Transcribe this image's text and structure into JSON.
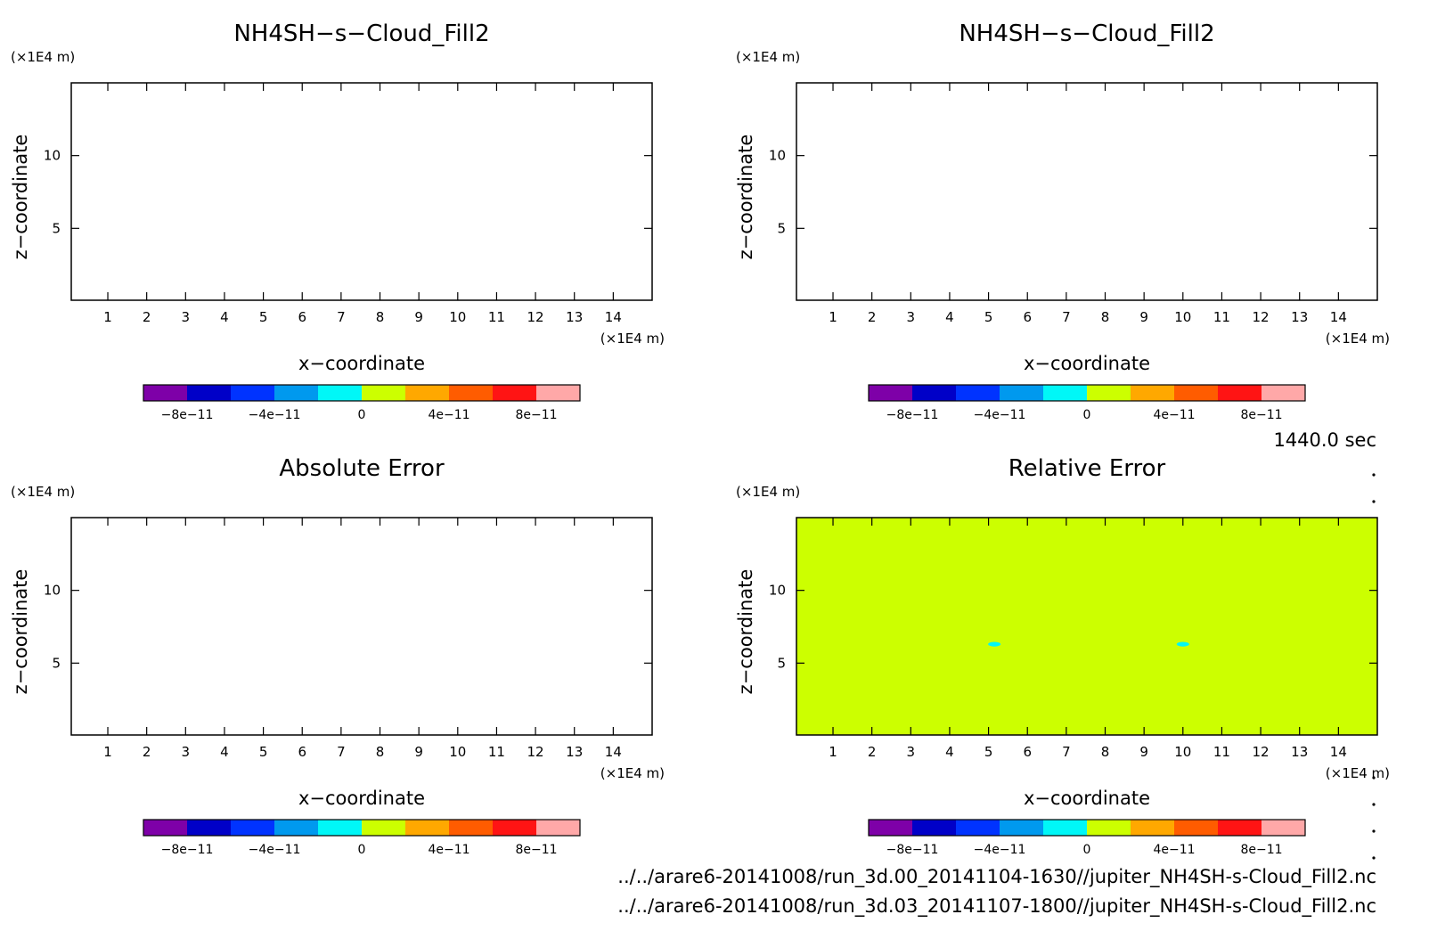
{
  "chart_data": [
    {
      "type": "heatmap",
      "title": "NH4SH-s-Cloud_Fill2",
      "xlabel": "x-coordinate",
      "ylabel": "z-coordinate",
      "x_unit": "(×1E4 m)",
      "y_unit": "(×1E4 m)",
      "xlim": [
        0.06,
        15.0
      ],
      "ylim": [
        0.06,
        15.0
      ],
      "x_ticks": [
        1,
        2,
        3,
        4,
        5,
        6,
        7,
        8,
        9,
        10,
        11,
        12,
        13,
        14
      ],
      "y_ticks": [
        5,
        10
      ],
      "grid": false,
      "fill": "none",
      "colorbar": {
        "levels": [
          -1e-10,
          -8e-11,
          -6e-11,
          -4e-11,
          -2e-11,
          0,
          2e-11,
          4e-11,
          6e-11,
          8e-11,
          1e-10
        ],
        "tick_labels": [
          "-8e-11",
          "-4e-11",
          "0",
          "4e-11",
          "8e-11"
        ],
        "colors": [
          "#7e00a8",
          "#0000c8",
          "#0033ff",
          "#0099ee",
          "#00f7f7",
          "#ccff00",
          "#ffa800",
          "#ff5c00",
          "#ff1414",
          "#ffa8a8"
        ]
      }
    },
    {
      "type": "heatmap",
      "title": "NH4SH-s-Cloud_Fill2",
      "xlabel": "x-coordinate",
      "ylabel": "z-coordinate",
      "x_unit": "(×1E4 m)",
      "y_unit": "(×1E4 m)",
      "xlim": [
        0.06,
        15.0
      ],
      "ylim": [
        0.06,
        15.0
      ],
      "x_ticks": [
        1,
        2,
        3,
        4,
        5,
        6,
        7,
        8,
        9,
        10,
        11,
        12,
        13,
        14
      ],
      "y_ticks": [
        5,
        10
      ],
      "grid": false,
      "fill": "none",
      "colorbar": {
        "levels": [
          -1e-10,
          -8e-11,
          -6e-11,
          -4e-11,
          -2e-11,
          0,
          2e-11,
          4e-11,
          6e-11,
          8e-11,
          1e-10
        ],
        "tick_labels": [
          "-8e-11",
          "-4e-11",
          "0",
          "4e-11",
          "8e-11"
        ],
        "colors": [
          "#7e00a8",
          "#0000c8",
          "#0033ff",
          "#0099ee",
          "#00f7f7",
          "#ccff00",
          "#ffa800",
          "#ff5c00",
          "#ff1414",
          "#ffa8a8"
        ]
      }
    },
    {
      "type": "heatmap",
      "title": "Absolute Error",
      "xlabel": "x-coordinate",
      "ylabel": "z-coordinate",
      "x_unit": "(×1E4 m)",
      "y_unit": "(×1E4 m)",
      "xlim": [
        0.06,
        15.0
      ],
      "ylim": [
        0.06,
        15.0
      ],
      "x_ticks": [
        1,
        2,
        3,
        4,
        5,
        6,
        7,
        8,
        9,
        10,
        11,
        12,
        13,
        14
      ],
      "y_ticks": [
        5,
        10
      ],
      "grid": false,
      "fill": "none",
      "colorbar": {
        "levels": [
          -1e-10,
          -8e-11,
          -6e-11,
          -4e-11,
          -2e-11,
          0,
          2e-11,
          4e-11,
          6e-11,
          8e-11,
          1e-10
        ],
        "tick_labels": [
          "-8e-11",
          "-4e-11",
          "0",
          "4e-11",
          "8e-11"
        ],
        "colors": [
          "#7e00a8",
          "#0000c8",
          "#0033ff",
          "#0099ee",
          "#00f7f7",
          "#ccff00",
          "#ffa800",
          "#ff5c00",
          "#ff1414",
          "#ffa8a8"
        ]
      }
    },
    {
      "type": "heatmap",
      "title": "Relative Error",
      "xlabel": "x-coordinate",
      "ylabel": "z-coordinate",
      "x_unit": "(×1E4 m)",
      "y_unit": "(×1E4 m)",
      "xlim": [
        0.06,
        15.0
      ],
      "ylim": [
        0.06,
        15.0
      ],
      "x_ticks": [
        1,
        2,
        3,
        4,
        5,
        6,
        7,
        8,
        9,
        10,
        11,
        12,
        13,
        14
      ],
      "y_ticks": [
        5,
        10
      ],
      "grid": false,
      "fill": "#ccff00",
      "spots": [
        {
          "x": 5.15,
          "z": 6.3,
          "color": "#00f7f7"
        },
        {
          "x": 10.0,
          "z": 6.3,
          "color": "#00f7f7"
        }
      ],
      "colorbar": {
        "levels": [
          -1e-10,
          -8e-11,
          -6e-11,
          -4e-11,
          -2e-11,
          0,
          2e-11,
          4e-11,
          6e-11,
          8e-11,
          1e-10
        ],
        "tick_labels": [
          "-8e-11",
          "-4e-11",
          "0",
          "4e-11",
          "8e-11"
        ],
        "colors": [
          "#7e00a8",
          "#0000c8",
          "#0033ff",
          "#0099ee",
          "#00f7f7",
          "#ccff00",
          "#ffa800",
          "#ff5c00",
          "#ff1414",
          "#ffa8a8"
        ]
      }
    }
  ],
  "time_label": "1440.0 sec",
  "footer": {
    "line1": "../../arare6-20141008/run_3d.00_20141104-1630//jupiter_NH4SH-s-Cloud_Fill2.nc",
    "line2": "../../arare6-20141008/run_3d.03_20141107-1800//jupiter_NH4SH-s-Cloud_Fill2.nc"
  }
}
